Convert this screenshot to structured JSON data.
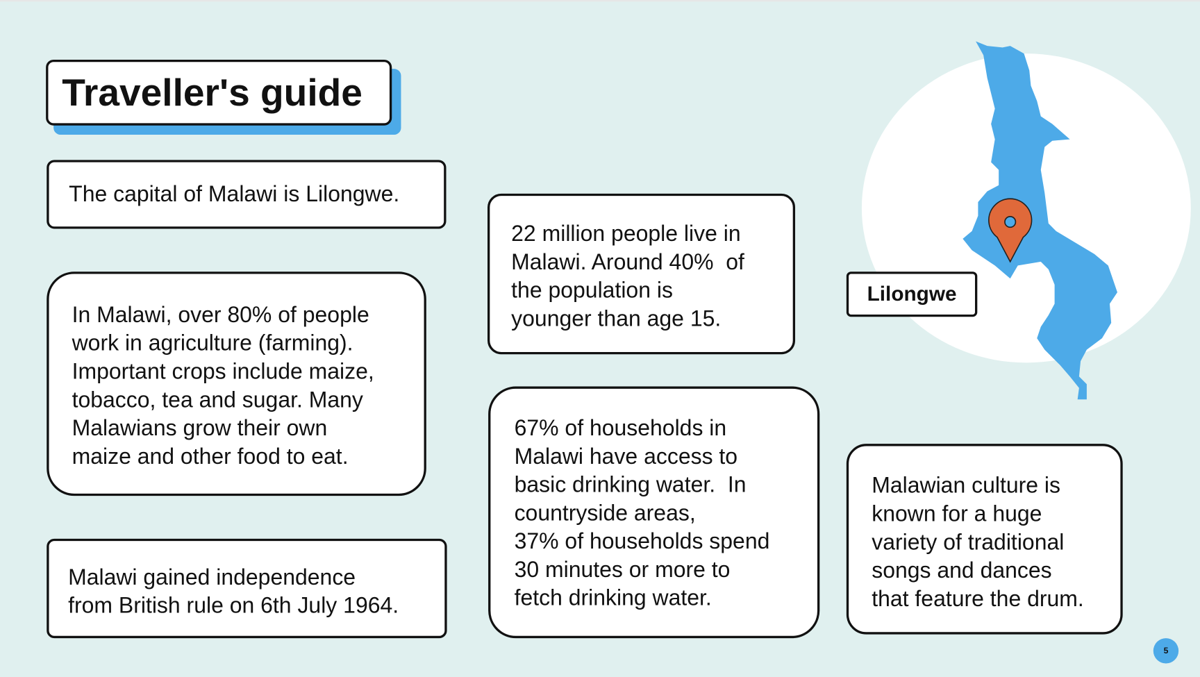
{
  "title": "Traveller's guide",
  "facts": {
    "capital": "The capital of Malawi is Lilongwe.",
    "agriculture": [
      "In Malawi, over 80% of people",
      "work in agriculture (farming).",
      "Important crops include maize,",
      "tobacco, tea and sugar. Many",
      "Malawians grow their own",
      "maize and other food to eat."
    ],
    "independence": [
      "Malawi gained independence",
      "from British rule on 6th July 1964."
    ],
    "population": [
      "22 million people live in",
      "Malawi. Around 40%  of",
      "the population is",
      "younger than age 15."
    ],
    "water": [
      "67% of households in",
      "Malawi have access to",
      "basic drinking water.  In",
      "countryside areas,",
      "37% of households spend",
      "30 minutes or more to",
      "fetch drinking water."
    ],
    "culture": [
      "Malawian culture is",
      "known for a huge",
      "variety of traditional",
      "songs and dances",
      "that feature the drum."
    ]
  },
  "map": {
    "label": "Lilongwe",
    "icon": "map-pin-icon",
    "country_color": "#4daae8",
    "pin_color": "#e0693a"
  },
  "page_number": "5"
}
